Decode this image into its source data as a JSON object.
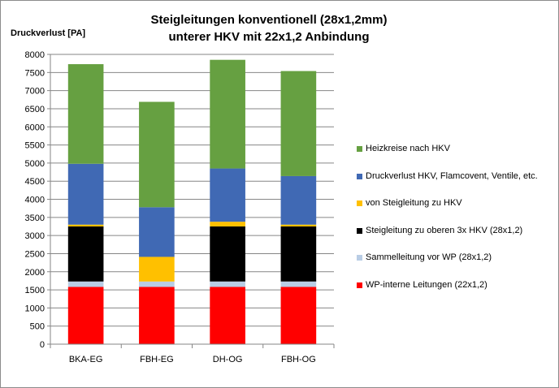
{
  "chart_data": {
    "type": "bar",
    "stacked": true,
    "title": "Steigleitungen konventionell (28x1,2mm)",
    "subtitle": "unterer HKV mit 22x1,2 Anbindung",
    "ylabel": "Druckverlust [PA]",
    "xlabel": "",
    "ylim": [
      0,
      8000
    ],
    "yticks": [
      0,
      500,
      1000,
      1500,
      2000,
      2500,
      3000,
      3500,
      4000,
      4500,
      5000,
      5500,
      6000,
      6500,
      7000,
      7500,
      8000
    ],
    "grid": true,
    "legend_position": "right",
    "categories": [
      "BKA-EG",
      "FBH-EG",
      "DH-OG",
      "FBH-OG"
    ],
    "series": [
      {
        "name": "WP-interne Leitungen (22x1,2)",
        "color": "#ff0000",
        "values": [
          1580,
          1580,
          1580,
          1580
        ]
      },
      {
        "name": "Sammelleitung vor WP (28x1,2)",
        "color": "#b9cde5",
        "values": [
          150,
          150,
          150,
          150
        ]
      },
      {
        "name": "Steigleitung zu oberen 3x HKV (28x1,2)",
        "color": "#000000",
        "values": [
          1520,
          0,
          1520,
          1520
        ]
      },
      {
        "name": "von Steigleitung zu HKV",
        "color": "#ffc000",
        "values": [
          50,
          680,
          130,
          50
        ]
      },
      {
        "name": "Druckverlust HKV, Flamcovent, Ventile, etc.",
        "color": "#4069b4",
        "values": [
          1680,
          1370,
          1470,
          1340
        ]
      },
      {
        "name": "Heizkreise nach HKV",
        "color": "#66a041",
        "values": [
          2750,
          2910,
          3000,
          2900
        ]
      }
    ]
  }
}
